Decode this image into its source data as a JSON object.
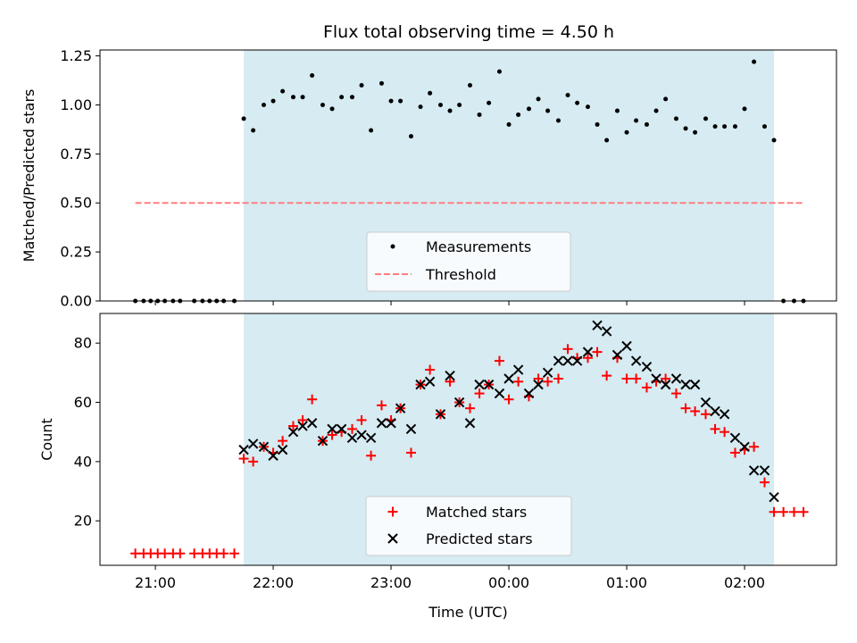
{
  "title": "Flux total observing time = 4.50 h",
  "xlabel": "Time (UTC)",
  "colors": {
    "measurements": "#000000",
    "threshold": "#ff7f7f",
    "matched": "#ff0000",
    "predicted": "#000000",
    "observing_window": "#add8e6"
  },
  "chart_data": [
    {
      "type": "scatter",
      "ylabel": "Matched/Predicted stars",
      "ylim": [
        0,
        1.28
      ],
      "yticks": [
        "0.00",
        "0.25",
        "0.50",
        "0.75",
        "1.00",
        "1.25"
      ],
      "legend_position": "bottom-center",
      "observing_window": [
        21.75,
        26.25
      ],
      "series": [
        {
          "name": "Measurements",
          "marker": "dot",
          "x": [
            20.83,
            20.9,
            20.96,
            21.02,
            21.08,
            21.15,
            21.21,
            21.33,
            21.4,
            21.46,
            21.52,
            21.58,
            21.67,
            21.75,
            21.83,
            21.92,
            22.0,
            22.08,
            22.17,
            22.25,
            22.33,
            22.42,
            22.5,
            22.58,
            22.67,
            22.75,
            22.83,
            22.92,
            23.0,
            23.08,
            23.17,
            23.25,
            23.33,
            23.42,
            23.5,
            23.58,
            23.67,
            23.75,
            23.83,
            23.92,
            24.0,
            24.08,
            24.17,
            24.25,
            24.33,
            24.42,
            24.5,
            24.58,
            24.67,
            24.75,
            24.83,
            24.92,
            25.0,
            25.08,
            25.17,
            25.25,
            25.33,
            25.42,
            25.5,
            25.58,
            25.67,
            25.75,
            25.83,
            25.92,
            26.0,
            26.08,
            26.17,
            26.25,
            26.33,
            26.42,
            26.5
          ],
          "y": [
            0,
            0,
            0,
            0,
            0,
            0,
            0,
            0,
            0,
            0,
            0,
            0,
            0,
            0.93,
            0.87,
            1.0,
            1.02,
            1.07,
            1.04,
            1.04,
            1.15,
            1.0,
            0.98,
            1.04,
            1.04,
            1.1,
            0.87,
            1.11,
            1.02,
            1.02,
            0.84,
            0.99,
            1.06,
            1.0,
            0.97,
            1.0,
            1.1,
            0.95,
            1.01,
            1.17,
            0.9,
            0.95,
            0.98,
            1.03,
            0.97,
            0.92,
            1.05,
            1.01,
            0.99,
            0.9,
            0.82,
            0.97,
            0.86,
            0.92,
            0.9,
            0.97,
            1.03,
            0.93,
            0.88,
            0.86,
            0.93,
            0.89,
            0.89,
            0.89,
            0.98,
            1.22,
            0.89,
            0.82,
            0,
            0,
            0
          ]
        },
        {
          "name": "Threshold",
          "marker": "dashed-line",
          "x": [
            20.83,
            26.5
          ],
          "y": [
            0.5,
            0.5
          ]
        }
      ]
    },
    {
      "type": "scatter",
      "ylabel": "Count",
      "ylim": [
        5,
        90
      ],
      "yticks": [
        "20",
        "40",
        "60",
        "80"
      ],
      "xlim": [
        20.53,
        26.78
      ],
      "xticks": [
        "21:00",
        "22:00",
        "23:00",
        "00:00",
        "01:00",
        "02:00"
      ],
      "legend_position": "bottom-center",
      "observing_window": [
        21.75,
        26.25
      ],
      "series": [
        {
          "name": "Matched stars",
          "marker": "plus",
          "x": [
            20.83,
            20.9,
            20.96,
            21.02,
            21.08,
            21.15,
            21.21,
            21.33,
            21.4,
            21.46,
            21.52,
            21.58,
            21.67,
            21.75,
            21.83,
            21.92,
            22.0,
            22.08,
            22.17,
            22.25,
            22.33,
            22.42,
            22.5,
            22.58,
            22.67,
            22.75,
            22.83,
            22.92,
            23.0,
            23.08,
            23.17,
            23.25,
            23.33,
            23.42,
            23.5,
            23.58,
            23.67,
            23.75,
            23.83,
            23.92,
            24.0,
            24.08,
            24.17,
            24.25,
            24.33,
            24.42,
            24.5,
            24.58,
            24.67,
            24.75,
            24.83,
            24.92,
            25.0,
            25.08,
            25.17,
            25.25,
            25.33,
            25.42,
            25.5,
            25.58,
            25.67,
            25.75,
            25.83,
            25.92,
            26.0,
            26.08,
            26.17,
            26.25,
            26.33,
            26.42,
            26.5
          ],
          "y": [
            9,
            9,
            9,
            9,
            9,
            9,
            9,
            9,
            9,
            9,
            9,
            9,
            9,
            41,
            40,
            45,
            43,
            47,
            52,
            54,
            61,
            47,
            49,
            50,
            51,
            54,
            42,
            59,
            54,
            58,
            43,
            66,
            71,
            56,
            67,
            60,
            58,
            63,
            66,
            74,
            61,
            67,
            62,
            68,
            67,
            68,
            78,
            75,
            75,
            77,
            69,
            75,
            68,
            68,
            65,
            67,
            68,
            63,
            58,
            57,
            56,
            51,
            50,
            43,
            44,
            45,
            33,
            23,
            23,
            23,
            23
          ]
        },
        {
          "name": "Predicted stars",
          "marker": "cross",
          "x": [
            21.75,
            21.83,
            21.92,
            22.0,
            22.08,
            22.17,
            22.25,
            22.33,
            22.42,
            22.5,
            22.58,
            22.67,
            22.75,
            22.83,
            22.92,
            23.0,
            23.08,
            23.17,
            23.25,
            23.33,
            23.42,
            23.5,
            23.58,
            23.67,
            23.75,
            23.83,
            23.92,
            24.0,
            24.08,
            24.17,
            24.25,
            24.33,
            24.42,
            24.5,
            24.58,
            24.67,
            24.75,
            24.83,
            24.92,
            25.0,
            25.08,
            25.17,
            25.25,
            25.33,
            25.42,
            25.5,
            25.58,
            25.67,
            25.75,
            25.83,
            25.92,
            26.0,
            26.08,
            26.17,
            26.25
          ],
          "y": [
            44,
            46,
            45,
            42,
            44,
            50,
            52,
            53,
            47,
            51,
            51,
            48,
            49,
            48,
            53,
            53,
            58,
            51,
            66,
            67,
            56,
            69,
            60,
            53,
            66,
            66,
            63,
            68,
            71,
            63,
            66,
            70,
            74,
            74,
            74,
            77,
            86,
            84,
            76,
            79,
            74,
            72,
            68,
            66,
            68,
            66,
            66,
            60,
            57,
            56,
            48,
            45,
            37,
            37,
            28
          ]
        }
      ]
    }
  ]
}
